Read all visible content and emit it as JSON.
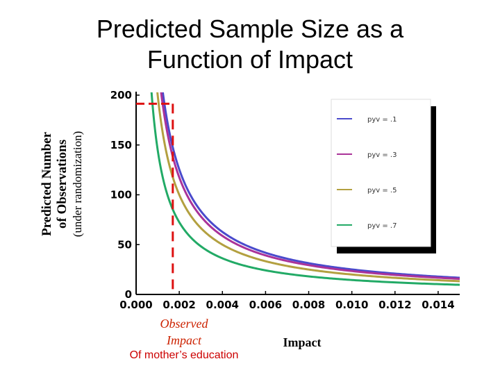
{
  "page": {
    "title_line1": "Predicted Sample Size as a",
    "title_line2": "Function of Impact",
    "ylabel_line1": "Predicted Number",
    "ylabel_line2": "of Observations",
    "ylabel_line3": "(under randomization)",
    "observed_line1": "Observed",
    "observed_line2": "Impact",
    "observed_sub": "Of mother’s education",
    "xlabel": "Impact"
  },
  "colors": {
    "observed": "#dd1111",
    "frame": "#000000"
  },
  "chart_data": {
    "type": "line",
    "title": "Predicted Sample Size as a Function of Impact",
    "xlabel": "Impact",
    "ylabel": "Predicted Number of Observations (under randomization)",
    "xlim": [
      0,
      0.015
    ],
    "ylim": [
      0,
      200
    ],
    "x_ticks": [
      "0.000",
      "0.002",
      "0.004",
      "0.006",
      "0.008",
      "0.010",
      "0.012",
      "0.014"
    ],
    "y_ticks": [
      "0",
      "50",
      "100",
      "150",
      "200"
    ],
    "legend_position": "top-right",
    "series": [
      {
        "name": "pyv = .1",
        "color": "#4a4acc",
        "k": 0.251,
        "x": [
          0.0015,
          0.002,
          0.004,
          0.006,
          0.008,
          0.01,
          0.012,
          0.014,
          0.015
        ],
        "y": [
          167,
          125.5,
          62.8,
          41.8,
          31.4,
          25.1,
          20.9,
          17.9,
          16.7
        ]
      },
      {
        "name": "pyv = .3",
        "color": "#aa3399",
        "k": 0.235,
        "x": [
          0.0015,
          0.002,
          0.004,
          0.006,
          0.008,
          0.01,
          0.012,
          0.014,
          0.015
        ],
        "y": [
          157,
          117.5,
          58.8,
          39.2,
          29.4,
          23.5,
          19.6,
          16.8,
          15.7
        ]
      },
      {
        "name": "pyv = .5",
        "color": "#b3a040",
        "k": 0.2,
        "x": [
          0.0015,
          0.002,
          0.004,
          0.006,
          0.008,
          0.01,
          0.012,
          0.014,
          0.015
        ],
        "y": [
          133,
          100,
          50,
          33.3,
          25,
          20,
          16.7,
          14.3,
          13.3
        ]
      },
      {
        "name": "pyv = .7",
        "color": "#22aa66",
        "k": 0.145,
        "x": [
          0.0015,
          0.002,
          0.004,
          0.006,
          0.008,
          0.01,
          0.012,
          0.014,
          0.015
        ],
        "y": [
          96.7,
          72.5,
          36.3,
          24.2,
          18.1,
          14.5,
          12.1,
          10.4,
          9.7
        ]
      }
    ],
    "observed_impact": {
      "x": 0.0017,
      "y": 190
    }
  }
}
